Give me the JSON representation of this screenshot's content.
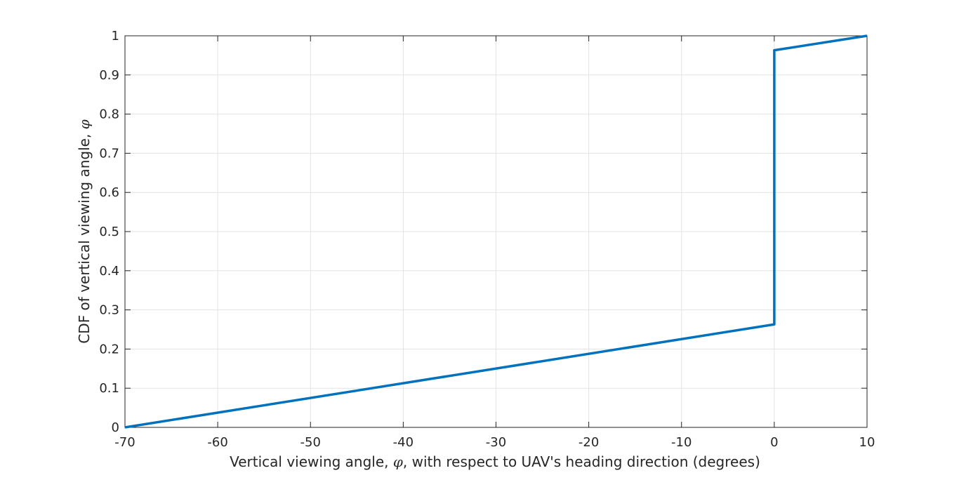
{
  "chart_data": {
    "type": "line",
    "title": "",
    "xlabel": "Vertical viewing angle, φ, with respect to UAV's heading direction (degrees)",
    "xlabel_parts": [
      "Vertical viewing angle, ",
      "φ",
      ", with respect to UAV's heading direction (degrees)"
    ],
    "ylabel": "CDF of vertical viewing angle, φ",
    "ylabel_parts": [
      "CDF of vertical viewing angle, ",
      "φ"
    ],
    "xlim": [
      -70,
      10
    ],
    "ylim": [
      0,
      1
    ],
    "xticks": [
      -70,
      -60,
      -50,
      -40,
      -30,
      -20,
      -10,
      0,
      10
    ],
    "yticks": [
      0,
      0.1,
      0.2,
      0.3,
      0.4,
      0.5,
      0.6,
      0.7,
      0.8,
      0.9,
      1
    ],
    "grid": true,
    "legend": "none",
    "series": [
      {
        "color": "#0072BD",
        "x": [
          -70,
          0,
          0,
          10
        ],
        "y": [
          0,
          0.263,
          0.963,
          1
        ]
      }
    ]
  }
}
